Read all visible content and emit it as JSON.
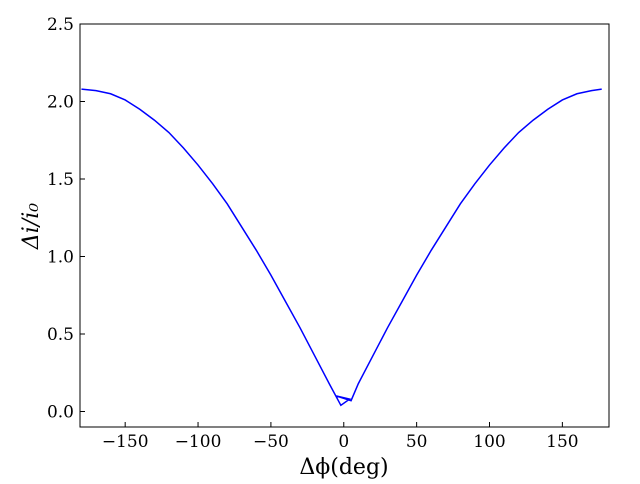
{
  "chart_data": {
    "type": "line",
    "x_label": "Δϕ(deg)",
    "y_label": "Δi/i₀",
    "x": [
      -180,
      -170,
      -160,
      -150,
      -140,
      -130,
      -120,
      -110,
      -100,
      -90,
      -80,
      -70,
      -60,
      -50,
      -40,
      -30,
      -20,
      -10,
      -2,
      4,
      -5,
      5,
      10,
      20,
      30,
      40,
      50,
      60,
      70,
      80,
      90,
      100,
      110,
      120,
      130,
      140,
      150,
      160,
      170,
      177
    ],
    "series": [
      {
        "name": "Δi/i₀",
        "color": "#0000ff",
        "values": [
          2.08,
          2.07,
          2.05,
          2.01,
          1.95,
          1.88,
          1.8,
          1.7,
          1.59,
          1.47,
          1.34,
          1.19,
          1.04,
          0.88,
          0.71,
          0.54,
          0.36,
          0.18,
          0.04,
          0.08,
          0.1,
          0.07,
          0.18,
          0.36,
          0.54,
          0.71,
          0.88,
          1.04,
          1.19,
          1.34,
          1.47,
          1.59,
          1.7,
          1.8,
          1.88,
          1.95,
          2.01,
          2.05,
          2.07,
          2.08
        ]
      }
    ],
    "xlim": [
      -181,
      182
    ],
    "ylim": [
      -0.1,
      2.5
    ],
    "xticks": [
      {
        "value": -150,
        "label": "−150"
      },
      {
        "value": -100,
        "label": "−100"
      },
      {
        "value": -50,
        "label": "−50"
      },
      0,
      50,
      100,
      150
    ],
    "yticks": [
      {
        "value": 0,
        "label": "0.0"
      },
      0.5,
      {
        "value": 1,
        "label": "1.0"
      },
      1.5,
      {
        "value": 2,
        "label": "2.0"
      },
      2.5
    ]
  }
}
